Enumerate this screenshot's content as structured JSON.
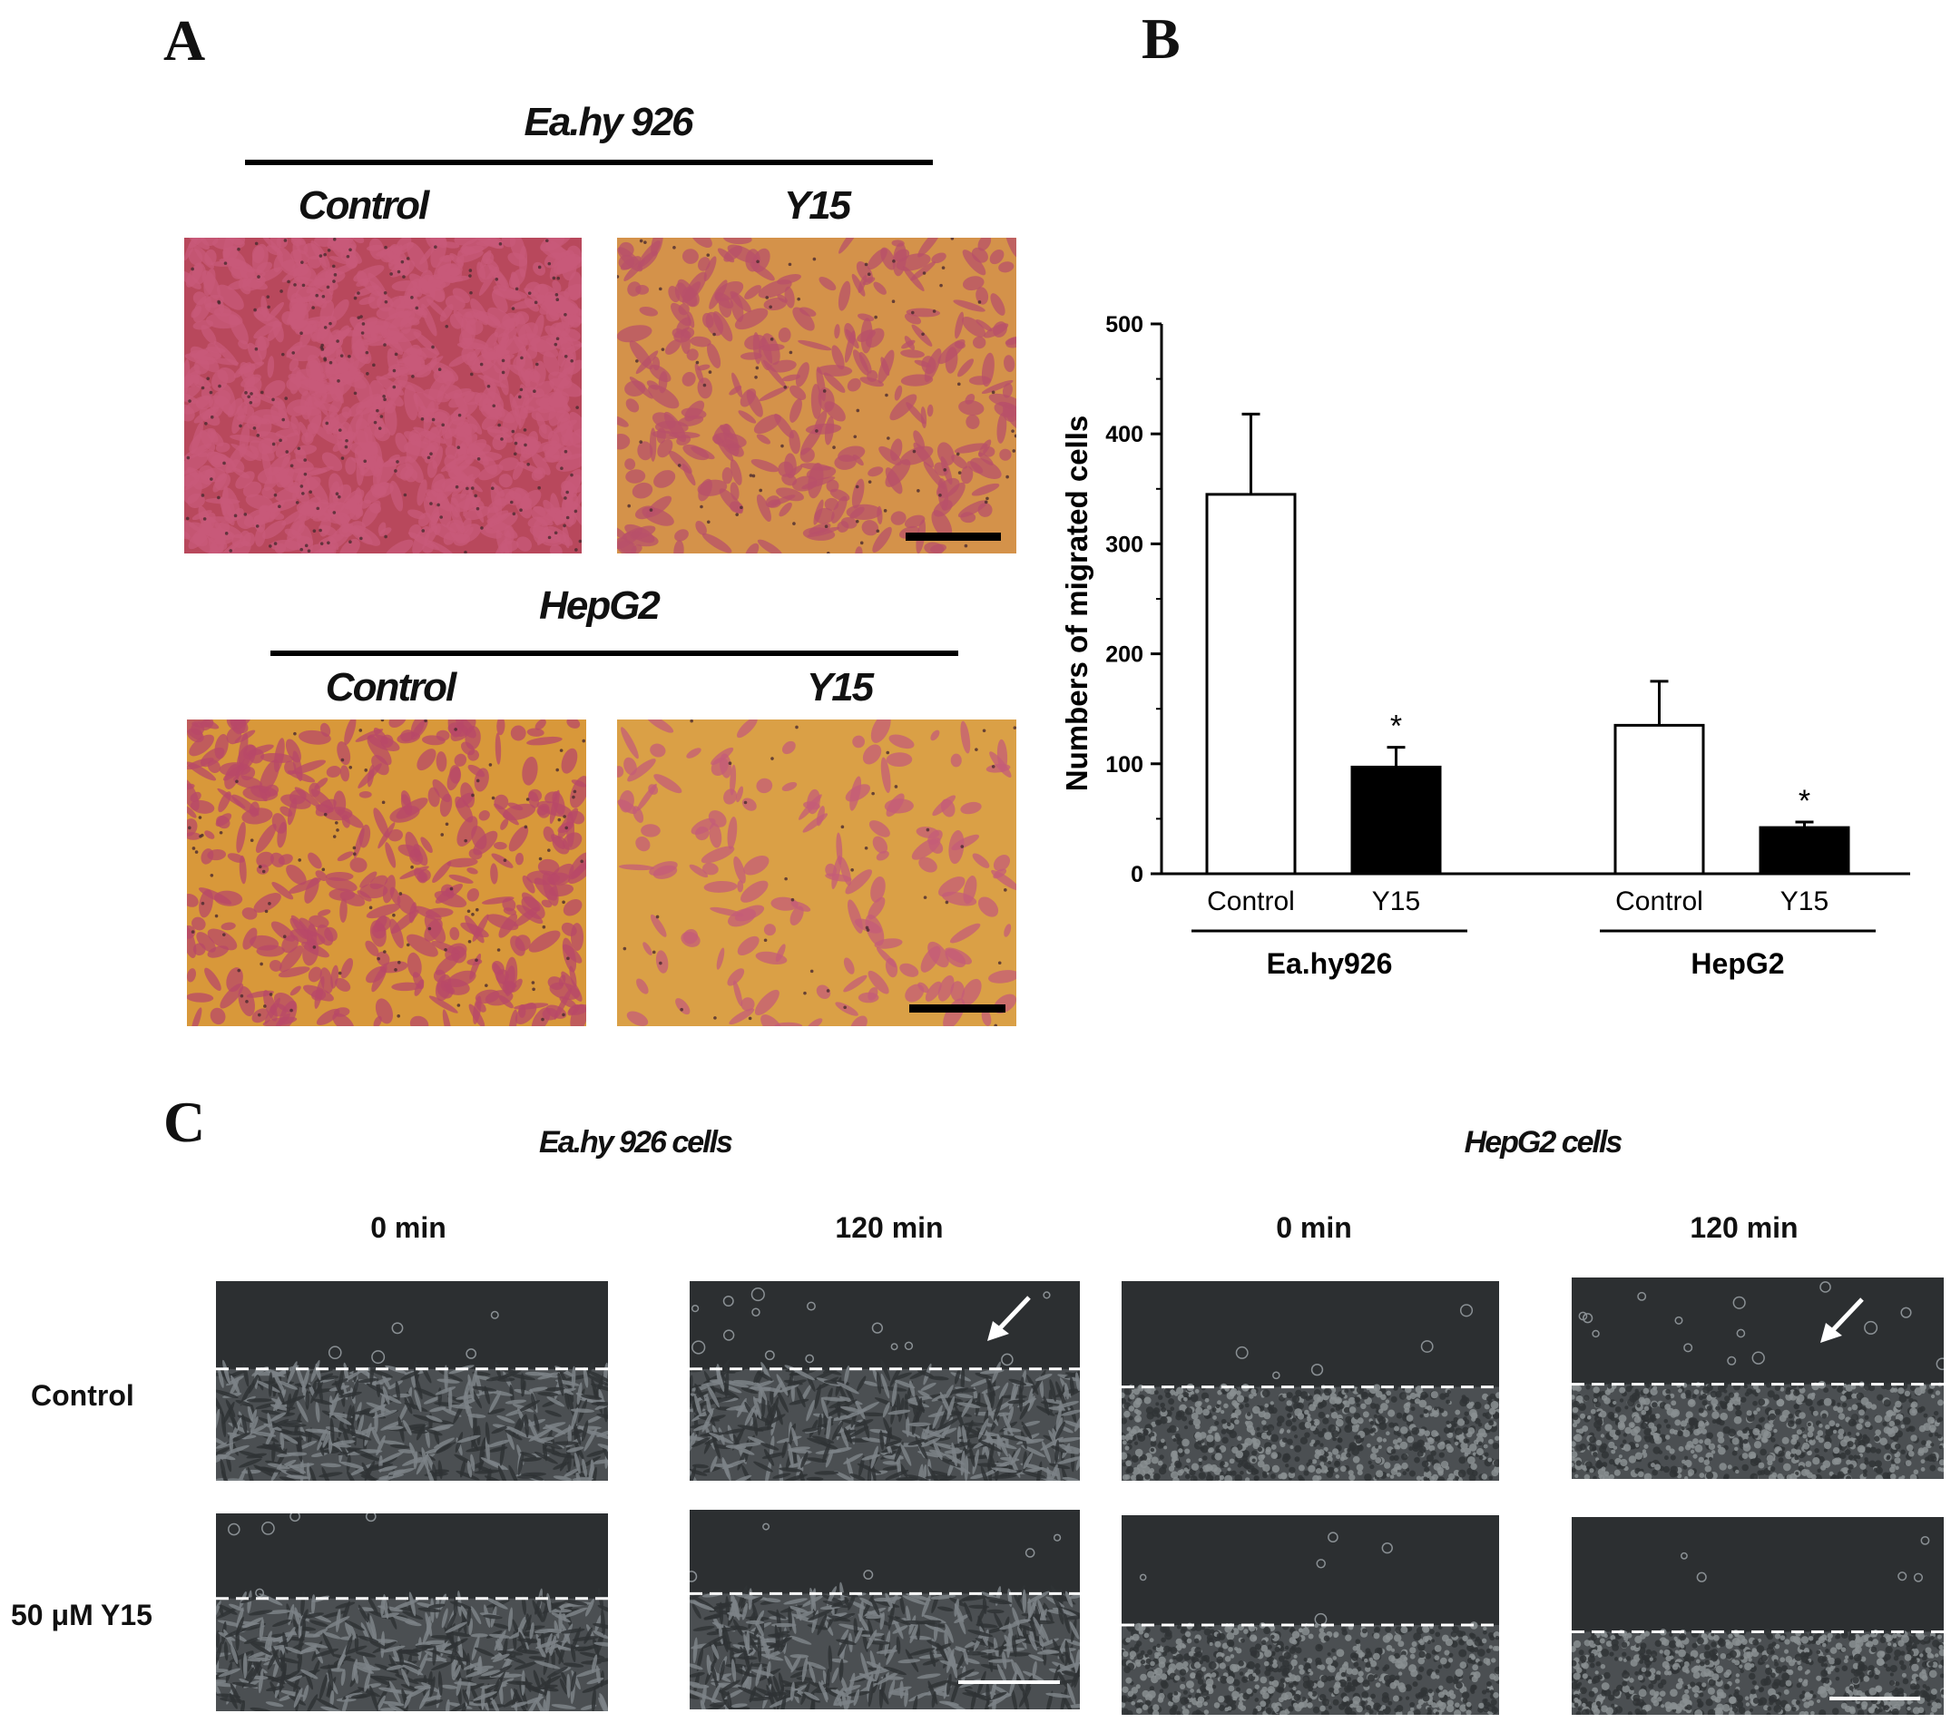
{
  "panel_a": {
    "letter": "A",
    "groups": [
      {
        "title": "Ea.hy 926",
        "conditions": [
          "Control",
          "Y15"
        ],
        "images": [
          {
            "name": "Ea.hy 926 control transwell",
            "bg": "#b8485c",
            "cell": "#c85a7a"
          },
          {
            "name": "Ea.hy 926 Y15 transwell",
            "bg": "#d4924a",
            "cell": "#b8506a"
          }
        ]
      },
      {
        "title": "HepG2",
        "conditions": [
          "Control",
          "Y15"
        ],
        "images": [
          {
            "name": "HepG2 control transwell",
            "bg": "#d8983a",
            "cell": "#b84868"
          },
          {
            "name": "HepG2 Y15 transwell",
            "bg": "#daa046",
            "cell": "#c45c78"
          }
        ]
      }
    ]
  },
  "panel_b": {
    "letter": "B"
  },
  "chart_data": {
    "type": "bar",
    "ylabel": "Numbers of migrated cells",
    "xlabel": "",
    "ylim": [
      0,
      500
    ],
    "yticks": [
      0,
      100,
      200,
      300,
      400,
      500
    ],
    "groups": [
      {
        "name": "Ea.hy926",
        "bars": [
          {
            "label": "Control",
            "value": 345,
            "error": 73,
            "fill": "#ffffff",
            "sig": ""
          },
          {
            "label": "Y15",
            "value": 97,
            "error": 18,
            "fill": "#000000",
            "sig": "*"
          }
        ]
      },
      {
        "name": "HepG2",
        "bars": [
          {
            "label": "Control",
            "value": 135,
            "error": 40,
            "fill": "#ffffff",
            "sig": ""
          },
          {
            "label": "Y15",
            "value": 42,
            "error": 5,
            "fill": "#000000",
            "sig": "*"
          }
        ]
      }
    ],
    "grid": false,
    "legend": "none"
  },
  "panel_c": {
    "letter": "C",
    "groups": [
      {
        "title": "Ea.hy 926 cells",
        "times": [
          "0 min",
          "120 min"
        ]
      },
      {
        "title": "HepG2 cells",
        "times": [
          "0 min",
          "120 min"
        ]
      }
    ],
    "rows": [
      "Control",
      "50 μM Y15"
    ]
  }
}
